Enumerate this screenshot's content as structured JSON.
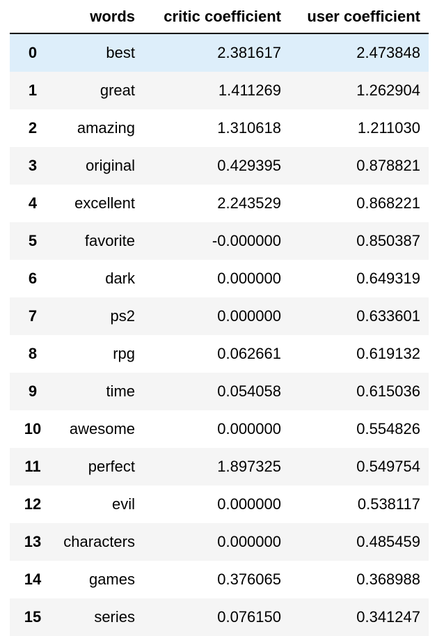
{
  "table": {
    "columns": [
      "",
      "words",
      "critic coefficient",
      "user coefficient"
    ],
    "rows": [
      {
        "index": "0",
        "words": "best",
        "critic": "2.381617",
        "user": "2.473848"
      },
      {
        "index": "1",
        "words": "great",
        "critic": "1.411269",
        "user": "1.262904"
      },
      {
        "index": "2",
        "words": "amazing",
        "critic": "1.310618",
        "user": "1.211030"
      },
      {
        "index": "3",
        "words": "original",
        "critic": "0.429395",
        "user": "0.878821"
      },
      {
        "index": "4",
        "words": "excellent",
        "critic": "2.243529",
        "user": "0.868221"
      },
      {
        "index": "5",
        "words": "favorite",
        "critic": "-0.000000",
        "user": "0.850387"
      },
      {
        "index": "6",
        "words": "dark",
        "critic": "0.000000",
        "user": "0.649319"
      },
      {
        "index": "7",
        "words": "ps2",
        "critic": "0.000000",
        "user": "0.633601"
      },
      {
        "index": "8",
        "words": "rpg",
        "critic": "0.062661",
        "user": "0.619132"
      },
      {
        "index": "9",
        "words": "time",
        "critic": "0.054058",
        "user": "0.615036"
      },
      {
        "index": "10",
        "words": "awesome",
        "critic": "0.000000",
        "user": "0.554826"
      },
      {
        "index": "11",
        "words": "perfect",
        "critic": "1.897325",
        "user": "0.549754"
      },
      {
        "index": "12",
        "words": "evil",
        "critic": "0.000000",
        "user": "0.538117"
      },
      {
        "index": "13",
        "words": "characters",
        "critic": "0.000000",
        "user": "0.485459"
      },
      {
        "index": "14",
        "words": "games",
        "critic": "0.376065",
        "user": "0.368988"
      },
      {
        "index": "15",
        "words": "series",
        "critic": "0.076150",
        "user": "0.341247"
      }
    ],
    "highlighted_row": "0",
    "colors": {
      "highlight": "#ddeefa",
      "stripe": "#f5f5f5",
      "header_rule": "#000000"
    }
  }
}
